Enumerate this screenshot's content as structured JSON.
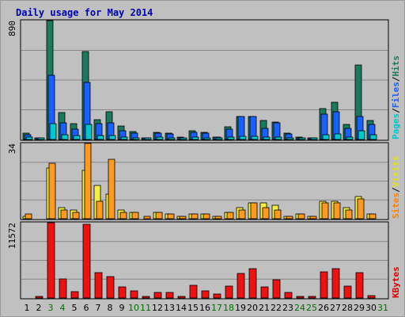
{
  "chart_data": {
    "type": "bar",
    "title": "Daily usage for May 2014",
    "categories": [
      "1",
      "2",
      "3",
      "4",
      "5",
      "6",
      "7",
      "8",
      "9",
      "10",
      "11",
      "12",
      "13",
      "14",
      "15",
      "16",
      "17",
      "18",
      "19",
      "20",
      "21",
      "22",
      "23",
      "24",
      "25",
      "26",
      "27",
      "28",
      "29",
      "30",
      "31"
    ],
    "weekend_days": [
      "3",
      "4",
      "10",
      "11",
      "17",
      "18",
      "24",
      "25",
      "31"
    ],
    "colors": {
      "title": "#0000b0",
      "weekday_label": "#000000",
      "weekend_label": "#007000",
      "background": "#c0c0c0",
      "gridline": "#888888",
      "pages": "#1a5fff",
      "files": "#1a5fff",
      "hits": "#1b7a5e",
      "visits": "#f8f040",
      "sites": "#ff9a20",
      "kbytes": "#ee1111",
      "legend_pages": "#00c8c8",
      "legend_files": "#1a5fff",
      "legend_hits": "#1b7a5e",
      "legend_visits": "#e0e020",
      "legend_sites": "#ff8000",
      "legend_kbytes": "#dd0000"
    },
    "panels": [
      {
        "name": "hits-files-pages",
        "ymax_label": "890",
        "ylim": [
          0,
          890
        ],
        "legend": [
          "Pages",
          "/",
          "Files",
          "/",
          "Hits"
        ],
        "series": [
          {
            "name": "Hits",
            "values": [
              45,
              10,
              890,
              200,
              120,
              660,
              150,
              210,
              100,
              60,
              10,
              55,
              50,
              15,
              65,
              55,
              20,
              95,
              175,
              175,
              145,
              130,
              45,
              15,
              10,
              230,
              280,
              110,
              560,
              140,
              0
            ]
          },
          {
            "name": "Files",
            "values": [
              35,
              8,
              480,
              125,
              80,
              430,
              120,
              125,
              65,
              50,
              8,
              45,
              40,
              12,
              55,
              45,
              15,
              80,
              170,
              170,
              85,
              125,
              40,
              12,
              8,
              190,
              210,
              85,
              175,
              110,
              0
            ]
          },
          {
            "name": "Pages",
            "values": [
              15,
              5,
              120,
              35,
              30,
              110,
              30,
              30,
              20,
              12,
              3,
              15,
              12,
              5,
              15,
              12,
              5,
              20,
              25,
              25,
              18,
              18,
              10,
              5,
              3,
              35,
              40,
              20,
              65,
              35,
              0
            ]
          }
        ]
      },
      {
        "name": "visits-sites",
        "ymax_label": "34",
        "ylim": [
          0,
          34
        ],
        "legend": [
          "Sites",
          "/",
          "Visits"
        ],
        "series": [
          {
            "name": "Visits",
            "values": [
              1,
              0,
              23,
              5,
              4,
              22,
              15,
              11,
              4,
              3,
              0,
              3,
              2,
              1,
              2,
              2,
              1,
              3,
              5,
              7,
              7,
              6,
              1,
              2,
              1,
              8,
              8,
              5,
              10,
              2,
              0
            ]
          },
          {
            "name": "Sites",
            "values": [
              2,
              0,
              25,
              4,
              3,
              34,
              8,
              27,
              3,
              3,
              1,
              3,
              2,
              1,
              2,
              2,
              1,
              3,
              4,
              7,
              5,
              4,
              1,
              2,
              1,
              7,
              7,
              4,
              9,
              2,
              0
            ]
          }
        ]
      },
      {
        "name": "kbytes",
        "ymax_label": "11572",
        "ylim": [
          0,
          11572
        ],
        "legend": [
          "KBytes"
        ],
        "series": [
          {
            "name": "KBytes",
            "values": [
              0,
              300,
              11572,
              2900,
              1000,
              11300,
              3900,
              3300,
              1700,
              1100,
              200,
              900,
              900,
              300,
              1900,
              1100,
              600,
              1800,
              3800,
              4500,
              1700,
              2800,
              800,
              200,
              100,
              4000,
              4500,
              1800,
              3900,
              400,
              0
            ]
          }
        ]
      }
    ]
  }
}
